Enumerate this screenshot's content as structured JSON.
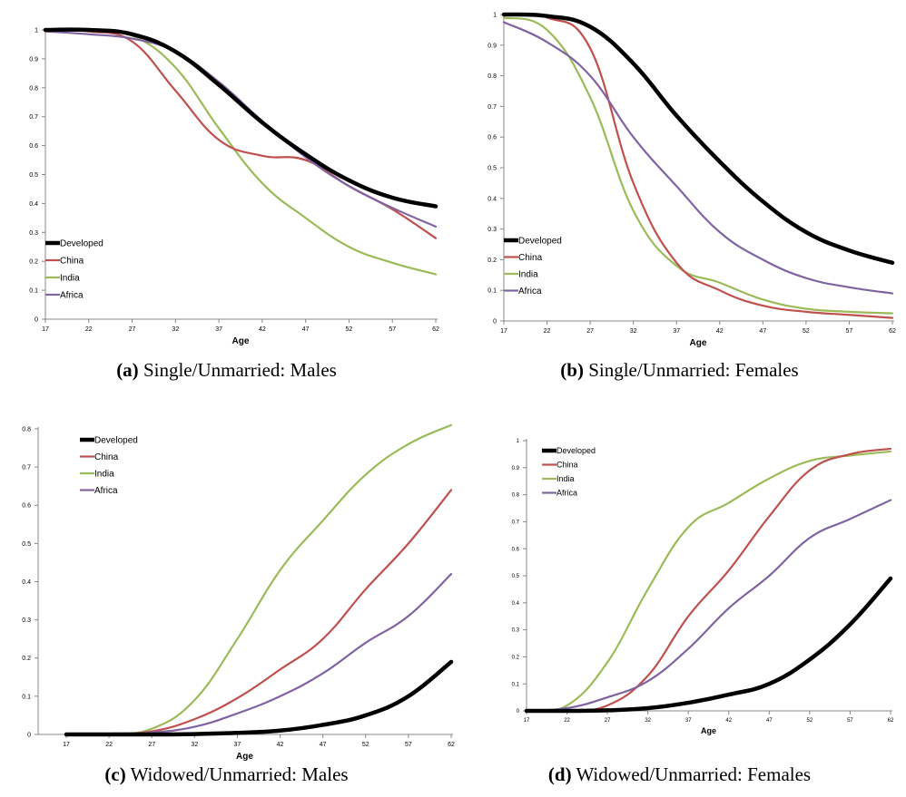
{
  "colors": {
    "Developed": "#000000",
    "China": "#c0504d",
    "India": "#9bbb59",
    "Africa": "#8064a2"
  },
  "chart_data": [
    {
      "type": "line",
      "id": "a",
      "caption_label": "(a)",
      "caption_text": "Single/Unmarried: Males",
      "xlabel": "Age",
      "ylabel": "",
      "x": [
        17,
        22,
        27,
        32,
        37,
        42,
        47,
        52,
        57,
        62
      ],
      "x_ticks": [
        "17",
        "22",
        "27",
        "32",
        "37",
        "42",
        "47",
        "52",
        "57",
        "62"
      ],
      "y_ticks": [
        "0",
        "0.1",
        "0.2",
        "0.3",
        "0.4",
        "0.5",
        "0.6",
        "0.7",
        "0.8",
        "0.9",
        "1"
      ],
      "ylim": [
        0,
        1
      ],
      "legend": "bottom-left",
      "series": [
        {
          "name": "Developed",
          "values": [
            1.0,
            1.0,
            0.985,
            0.925,
            0.81,
            0.68,
            0.57,
            0.48,
            0.42,
            0.39
          ]
        },
        {
          "name": "China",
          "values": [
            1.0,
            0.995,
            0.96,
            0.79,
            0.62,
            0.565,
            0.55,
            0.46,
            0.38,
            0.28
          ]
        },
        {
          "name": "India",
          "values": [
            1.0,
            1.0,
            0.98,
            0.87,
            0.66,
            0.47,
            0.35,
            0.25,
            0.195,
            0.155
          ]
        },
        {
          "name": "Africa",
          "values": [
            0.995,
            0.985,
            0.97,
            0.925,
            0.82,
            0.685,
            0.56,
            0.46,
            0.385,
            0.32
          ]
        }
      ]
    },
    {
      "type": "line",
      "id": "b",
      "caption_label": "(b)",
      "caption_text": "Single/Unmarried: Females",
      "xlabel": "Age",
      "ylabel": "",
      "x": [
        17,
        22,
        27,
        32,
        37,
        42,
        47,
        52,
        57,
        62
      ],
      "x_ticks": [
        "17",
        "22",
        "27",
        "32",
        "37",
        "42",
        "47",
        "52",
        "57",
        "62"
      ],
      "y_ticks": [
        "0",
        "0.1",
        "0.2",
        "0.3",
        "0.4",
        "0.5",
        "0.6",
        "0.7",
        "0.8",
        "0.9",
        "1"
      ],
      "ylim": [
        0,
        1
      ],
      "legend": "bottom-left",
      "series": [
        {
          "name": "Developed",
          "values": [
            1.0,
            0.995,
            0.96,
            0.84,
            0.67,
            0.52,
            0.39,
            0.29,
            0.23,
            0.19
          ]
        },
        {
          "name": "China",
          "values": [
            1.0,
            0.99,
            0.89,
            0.45,
            0.19,
            0.1,
            0.05,
            0.03,
            0.02,
            0.01
          ]
        },
        {
          "name": "India",
          "values": [
            0.99,
            0.95,
            0.73,
            0.36,
            0.18,
            0.125,
            0.07,
            0.04,
            0.03,
            0.025
          ]
        },
        {
          "name": "Africa",
          "values": [
            0.975,
            0.91,
            0.8,
            0.6,
            0.44,
            0.29,
            0.2,
            0.14,
            0.11,
            0.09
          ]
        }
      ]
    },
    {
      "type": "line",
      "id": "c",
      "caption_label": "(c)",
      "caption_text": "Widowed/Unmarried: Males",
      "xlabel": "Age",
      "ylabel": "",
      "x": [
        17,
        22,
        27,
        32,
        37,
        42,
        47,
        52,
        57,
        62
      ],
      "x_ticks": [
        "17",
        "22",
        "27",
        "32",
        "37",
        "42",
        "47",
        "52",
        "57",
        "62"
      ],
      "y_ticks": [
        "0",
        "0.1",
        "0.2",
        "0.3",
        "0.4",
        "0.5",
        "0.6",
        "0.7",
        "0.8"
      ],
      "ylim": [
        0,
        0.8
      ],
      "legend": "top-left",
      "series": [
        {
          "name": "Developed",
          "values": [
            0.0,
            0.0,
            0.0,
            0.001,
            0.004,
            0.01,
            0.025,
            0.05,
            0.1,
            0.19
          ]
        },
        {
          "name": "China",
          "values": [
            0.002,
            0.002,
            0.008,
            0.04,
            0.095,
            0.17,
            0.25,
            0.38,
            0.5,
            0.64
          ]
        },
        {
          "name": "India",
          "values": [
            0.002,
            0.002,
            0.015,
            0.09,
            0.25,
            0.43,
            0.56,
            0.68,
            0.76,
            0.81
          ]
        },
        {
          "name": "Africa",
          "values": [
            0.002,
            0.002,
            0.005,
            0.02,
            0.055,
            0.1,
            0.16,
            0.24,
            0.31,
            0.42
          ]
        }
      ]
    },
    {
      "type": "line",
      "id": "d",
      "caption_label": "(d)",
      "caption_text": "Widowed/Unmarried: Females",
      "xlabel": "Age",
      "ylabel": "",
      "x": [
        17,
        22,
        27,
        32,
        37,
        42,
        47,
        52,
        57,
        62
      ],
      "x_ticks": [
        "17",
        "22",
        "27",
        "32",
        "37",
        "42",
        "47",
        "52",
        "57",
        "62"
      ],
      "y_ticks": [
        "0",
        "0.1",
        "0.2",
        "0.3",
        "0.4",
        "0.5",
        "0.6",
        "0.7",
        "0.8",
        "0.9",
        "1"
      ],
      "ylim": [
        0,
        1
      ],
      "legend": "top-left",
      "series": [
        {
          "name": "Developed",
          "values": [
            0.0,
            0.0,
            0.002,
            0.01,
            0.03,
            0.06,
            0.1,
            0.19,
            0.32,
            0.49
          ]
        },
        {
          "name": "China",
          "values": [
            0.0,
            0.0,
            0.02,
            0.13,
            0.35,
            0.52,
            0.72,
            0.89,
            0.95,
            0.97
          ]
        },
        {
          "name": "India",
          "values": [
            0.0,
            0.02,
            0.18,
            0.45,
            0.68,
            0.77,
            0.86,
            0.925,
            0.945,
            0.96
          ]
        },
        {
          "name": "Africa",
          "values": [
            0.0,
            0.01,
            0.05,
            0.11,
            0.23,
            0.38,
            0.5,
            0.64,
            0.71,
            0.78
          ]
        }
      ]
    }
  ]
}
